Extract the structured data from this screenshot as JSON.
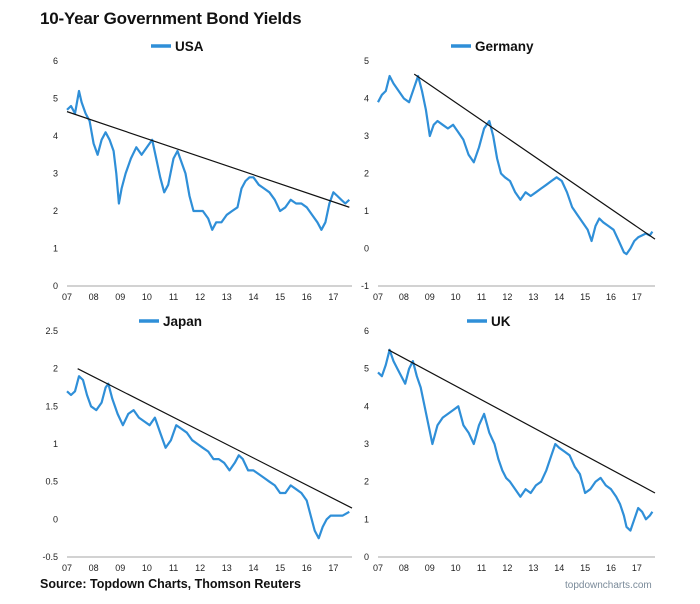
{
  "header": {
    "title": "10-Year Government Bond Yields"
  },
  "footer": {
    "source": "Source: Topdown Charts, Thomson Reuters",
    "watermark": "topdowncharts.com"
  },
  "style": {
    "series_color": "#2f8fd8",
    "trend_color": "#111111"
  },
  "chart_data": [
    {
      "type": "line",
      "title": "",
      "legend": "USA",
      "xlabel": "",
      "ylabel": "",
      "x_ticks": [
        "07",
        "08",
        "09",
        "10",
        "11",
        "12",
        "13",
        "14",
        "15",
        "16",
        "17"
      ],
      "xlim": [
        2007,
        2017.7
      ],
      "y_ticks": [
        "0",
        "1",
        "2",
        "3",
        "4",
        "5",
        "6"
      ],
      "ylim": [
        0,
        6
      ],
      "grid": false,
      "series": [
        {
          "name": "USA",
          "x": [
            2007.0,
            2007.15,
            2007.3,
            2007.45,
            2007.55,
            2007.7,
            2007.85,
            2008.0,
            2008.15,
            2008.3,
            2008.45,
            2008.6,
            2008.75,
            2008.85,
            2008.95,
            2009.05,
            2009.2,
            2009.4,
            2009.6,
            2009.8,
            2010.0,
            2010.2,
            2010.35,
            2010.5,
            2010.65,
            2010.8,
            2011.0,
            2011.15,
            2011.3,
            2011.45,
            2011.6,
            2011.75,
            2011.9,
            2012.1,
            2012.3,
            2012.45,
            2012.6,
            2012.8,
            2013.0,
            2013.2,
            2013.4,
            2013.55,
            2013.7,
            2013.85,
            2014.0,
            2014.2,
            2014.4,
            2014.6,
            2014.8,
            2015.0,
            2015.2,
            2015.4,
            2015.6,
            2015.8,
            2016.0,
            2016.2,
            2016.4,
            2016.55,
            2016.7,
            2016.85,
            2017.0,
            2017.15,
            2017.3,
            2017.45,
            2017.6
          ],
          "y": [
            4.7,
            4.8,
            4.6,
            5.2,
            4.9,
            4.6,
            4.4,
            3.8,
            3.5,
            3.9,
            4.1,
            3.9,
            3.6,
            3.0,
            2.2,
            2.6,
            3.0,
            3.4,
            3.7,
            3.5,
            3.7,
            3.9,
            3.4,
            2.9,
            2.5,
            2.7,
            3.4,
            3.6,
            3.3,
            3.0,
            2.4,
            2.0,
            2.0,
            2.0,
            1.8,
            1.5,
            1.7,
            1.7,
            1.9,
            2.0,
            2.1,
            2.6,
            2.8,
            2.9,
            2.9,
            2.7,
            2.6,
            2.5,
            2.3,
            2.0,
            2.1,
            2.3,
            2.2,
            2.2,
            2.1,
            1.9,
            1.7,
            1.5,
            1.7,
            2.2,
            2.5,
            2.4,
            2.3,
            2.2,
            2.3
          ]
        }
      ],
      "trendline": {
        "x": [
          2007.0,
          2017.6
        ],
        "y": [
          4.65,
          2.1
        ]
      }
    },
    {
      "type": "line",
      "title": "",
      "legend": "Germany",
      "xlabel": "",
      "ylabel": "",
      "x_ticks": [
        "07",
        "08",
        "09",
        "10",
        "11",
        "12",
        "13",
        "14",
        "15",
        "16",
        "17"
      ],
      "xlim": [
        2007,
        2017.7
      ],
      "y_ticks": [
        "-1",
        "0",
        "1",
        "2",
        "3",
        "4",
        "5"
      ],
      "ylim": [
        -1,
        5
      ],
      "grid": false,
      "series": [
        {
          "name": "Germany",
          "x": [
            2007.0,
            2007.15,
            2007.3,
            2007.45,
            2007.6,
            2007.8,
            2008.0,
            2008.2,
            2008.4,
            2008.55,
            2008.7,
            2008.85,
            2009.0,
            2009.15,
            2009.3,
            2009.5,
            2009.7,
            2009.9,
            2010.1,
            2010.3,
            2010.5,
            2010.7,
            2010.9,
            2011.1,
            2011.3,
            2011.45,
            2011.6,
            2011.75,
            2011.9,
            2012.1,
            2012.3,
            2012.5,
            2012.7,
            2012.9,
            2013.1,
            2013.3,
            2013.5,
            2013.7,
            2013.9,
            2014.1,
            2014.3,
            2014.5,
            2014.7,
            2014.9,
            2015.1,
            2015.25,
            2015.4,
            2015.55,
            2015.7,
            2015.9,
            2016.1,
            2016.3,
            2016.5,
            2016.6,
            2016.75,
            2016.9,
            2017.05,
            2017.2,
            2017.35,
            2017.5,
            2017.6
          ],
          "y": [
            3.9,
            4.1,
            4.2,
            4.6,
            4.4,
            4.2,
            4.0,
            3.9,
            4.3,
            4.6,
            4.2,
            3.7,
            3.0,
            3.3,
            3.4,
            3.3,
            3.2,
            3.3,
            3.1,
            2.9,
            2.5,
            2.3,
            2.7,
            3.2,
            3.4,
            3.0,
            2.4,
            2.0,
            1.9,
            1.8,
            1.5,
            1.3,
            1.5,
            1.4,
            1.5,
            1.6,
            1.7,
            1.8,
            1.9,
            1.8,
            1.5,
            1.1,
            0.9,
            0.7,
            0.5,
            0.2,
            0.6,
            0.8,
            0.7,
            0.6,
            0.5,
            0.2,
            -0.1,
            -0.15,
            0.0,
            0.2,
            0.3,
            0.35,
            0.4,
            0.35,
            0.45
          ]
        }
      ],
      "trendline": {
        "x": [
          2008.4,
          2017.7
        ],
        "y": [
          4.65,
          0.25
        ]
      }
    },
    {
      "type": "line",
      "title": "",
      "legend": "Japan",
      "xlabel": "",
      "ylabel": "",
      "x_ticks": [
        "07",
        "08",
        "09",
        "10",
        "11",
        "12",
        "13",
        "14",
        "15",
        "16",
        "17"
      ],
      "xlim": [
        2007,
        2017.7
      ],
      "y_ticks": [
        "-0.5",
        "0",
        "0.5",
        "1",
        "1.5",
        "2",
        "2.5"
      ],
      "ylim": [
        -0.5,
        2.5
      ],
      "grid": false,
      "series": [
        {
          "name": "Japan",
          "x": [
            2007.0,
            2007.15,
            2007.3,
            2007.45,
            2007.6,
            2007.75,
            2007.9,
            2008.1,
            2008.3,
            2008.45,
            2008.55,
            2008.7,
            2008.9,
            2009.1,
            2009.3,
            2009.5,
            2009.7,
            2009.9,
            2010.1,
            2010.3,
            2010.5,
            2010.7,
            2010.9,
            2011.1,
            2011.3,
            2011.5,
            2011.7,
            2011.9,
            2012.1,
            2012.3,
            2012.5,
            2012.7,
            2012.9,
            2013.1,
            2013.3,
            2013.45,
            2013.6,
            2013.8,
            2014.0,
            2014.2,
            2014.4,
            2014.6,
            2014.8,
            2015.0,
            2015.2,
            2015.4,
            2015.6,
            2015.8,
            2016.0,
            2016.15,
            2016.3,
            2016.45,
            2016.6,
            2016.75,
            2016.9,
            2017.05,
            2017.2,
            2017.35,
            2017.5,
            2017.6
          ],
          "y": [
            1.7,
            1.65,
            1.7,
            1.9,
            1.85,
            1.65,
            1.5,
            1.45,
            1.55,
            1.75,
            1.8,
            1.6,
            1.4,
            1.25,
            1.4,
            1.45,
            1.35,
            1.3,
            1.25,
            1.35,
            1.15,
            0.95,
            1.05,
            1.25,
            1.2,
            1.15,
            1.05,
            1.0,
            0.95,
            0.9,
            0.8,
            0.8,
            0.75,
            0.65,
            0.75,
            0.85,
            0.8,
            0.65,
            0.65,
            0.6,
            0.55,
            0.5,
            0.45,
            0.35,
            0.35,
            0.45,
            0.4,
            0.35,
            0.25,
            0.05,
            -0.15,
            -0.25,
            -0.1,
            0.0,
            0.05,
            0.05,
            0.05,
            0.05,
            0.08,
            0.1
          ]
        }
      ],
      "trendline": {
        "x": [
          2007.4,
          2017.7
        ],
        "y": [
          2.0,
          0.15
        ]
      }
    },
    {
      "type": "line",
      "title": "",
      "legend": "UK",
      "xlabel": "",
      "ylabel": "",
      "x_ticks": [
        "07",
        "08",
        "09",
        "10",
        "11",
        "12",
        "13",
        "14",
        "15",
        "16",
        "17"
      ],
      "xlim": [
        2007,
        2017.7
      ],
      "y_ticks": [
        "0",
        "1",
        "2",
        "3",
        "4",
        "5",
        "6"
      ],
      "ylim": [
        0,
        6
      ],
      "grid": false,
      "series": [
        {
          "name": "UK",
          "x": [
            2007.0,
            2007.15,
            2007.3,
            2007.45,
            2007.6,
            2007.75,
            2007.9,
            2008.05,
            2008.2,
            2008.35,
            2008.5,
            2008.65,
            2008.8,
            2008.95,
            2009.1,
            2009.3,
            2009.5,
            2009.7,
            2009.9,
            2010.1,
            2010.3,
            2010.5,
            2010.7,
            2010.9,
            2011.1,
            2011.3,
            2011.5,
            2011.65,
            2011.8,
            2011.95,
            2012.1,
            2012.3,
            2012.5,
            2012.7,
            2012.9,
            2013.1,
            2013.3,
            2013.5,
            2013.7,
            2013.85,
            2014.0,
            2014.2,
            2014.4,
            2014.6,
            2014.8,
            2015.0,
            2015.2,
            2015.4,
            2015.6,
            2015.8,
            2016.0,
            2016.2,
            2016.35,
            2016.5,
            2016.6,
            2016.75,
            2016.9,
            2017.05,
            2017.2,
            2017.35,
            2017.5,
            2017.6
          ],
          "y": [
            4.9,
            4.8,
            5.1,
            5.5,
            5.2,
            5.0,
            4.8,
            4.6,
            5.0,
            5.2,
            4.8,
            4.5,
            4.0,
            3.5,
            3.0,
            3.5,
            3.7,
            3.8,
            3.9,
            4.0,
            3.5,
            3.3,
            3.0,
            3.5,
            3.8,
            3.3,
            3.0,
            2.6,
            2.3,
            2.1,
            2.0,
            1.8,
            1.6,
            1.8,
            1.7,
            1.9,
            2.0,
            2.3,
            2.7,
            3.0,
            2.9,
            2.8,
            2.7,
            2.4,
            2.2,
            1.7,
            1.8,
            2.0,
            2.1,
            1.9,
            1.8,
            1.6,
            1.4,
            1.1,
            0.8,
            0.7,
            1.0,
            1.3,
            1.2,
            1.0,
            1.1,
            1.2
          ]
        }
      ],
      "trendline": {
        "x": [
          2007.4,
          2017.7
        ],
        "y": [
          5.5,
          1.7
        ]
      }
    }
  ]
}
